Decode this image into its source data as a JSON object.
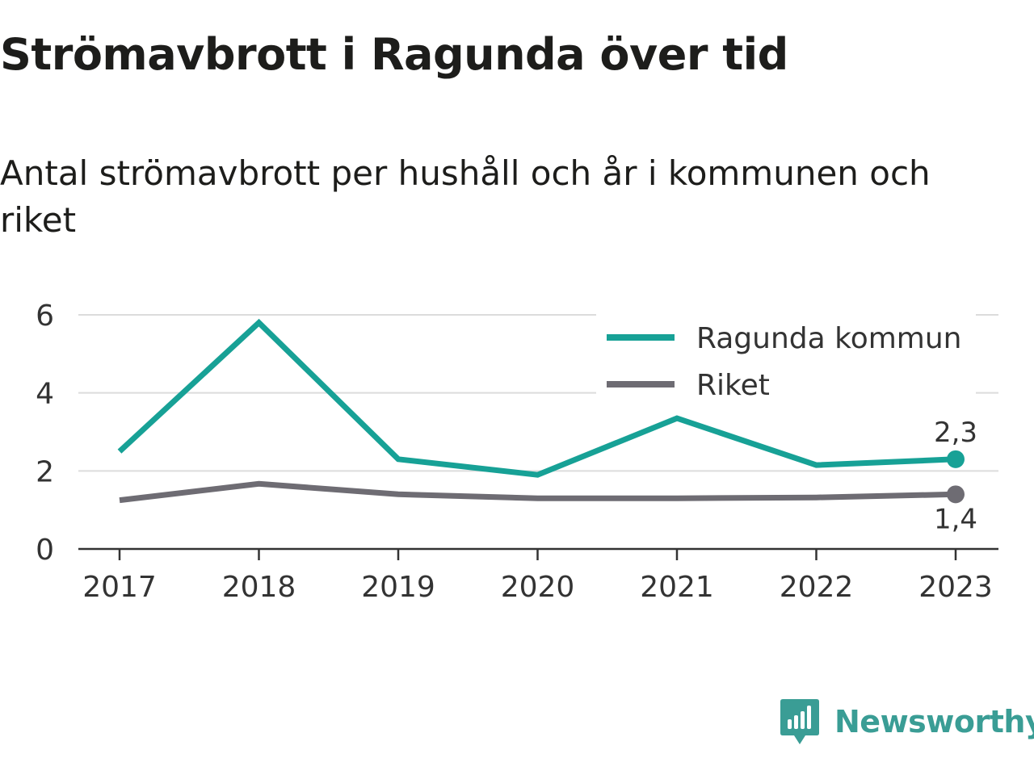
{
  "title": "Strömavbrott i Ragunda över tid",
  "subtitle": "Antal strömavbrott per hushåll och år i kommunen och riket",
  "brand": {
    "name": "Newsworthy",
    "icon": "newsworthy-logo-icon",
    "color": "#3a9d95"
  },
  "chart_data": {
    "type": "line",
    "title": "Strömavbrott i Ragunda över tid",
    "subtitle": "Antal strömavbrott per hushåll och år i kommunen och riket",
    "xlabel": "",
    "ylabel": "",
    "categories": [
      "2017",
      "2018",
      "2019",
      "2020",
      "2021",
      "2022",
      "2023"
    ],
    "ylim": [
      0,
      6
    ],
    "yticks": [
      0,
      2,
      4,
      6
    ],
    "grid": true,
    "legend_position": "top-right",
    "series": [
      {
        "name": "Ragunda kommun",
        "color": "#17a196",
        "values": [
          2.5,
          5.8,
          2.3,
          1.9,
          3.35,
          2.15,
          2.3
        ],
        "end_label": "2,3"
      },
      {
        "name": "Riket",
        "color": "#6e6c73",
        "values": [
          1.25,
          1.67,
          1.4,
          1.3,
          1.3,
          1.32,
          1.4
        ],
        "end_label": "1,4"
      }
    ]
  }
}
